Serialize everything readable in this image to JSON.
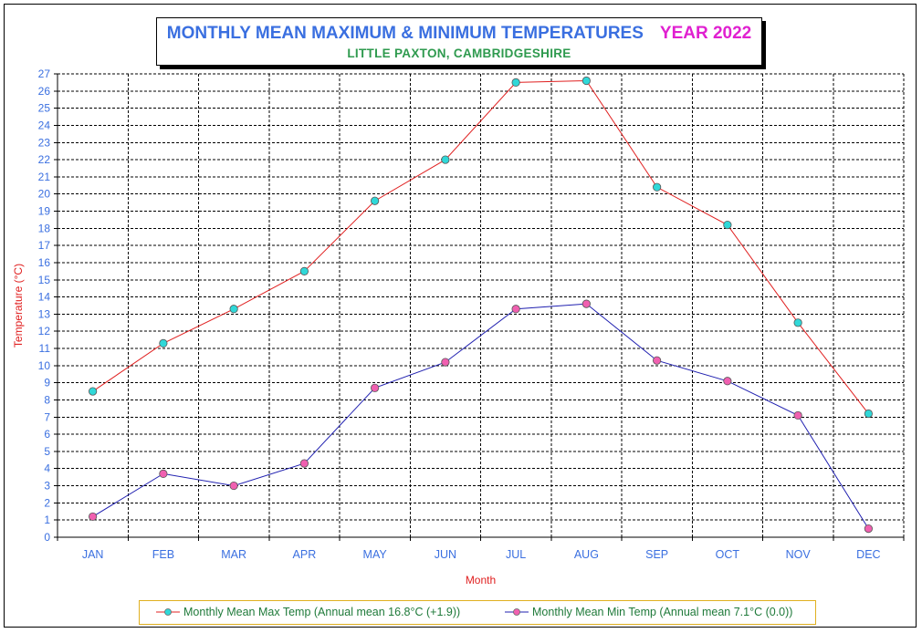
{
  "title": {
    "main": "MONTHLY  MEAN MAXIMUM & MINIMUM TEMPERATURES",
    "year": "YEAR 2022",
    "subtitle": "LITTLE PAXTON, CAMBRIDGESHIRE"
  },
  "colors": {
    "title": "#3a6fe0",
    "year": "#e020d0",
    "subtitle": "#2e9a4e",
    "max_line": "#e02020",
    "max_marker": "#30d8d8",
    "min_line": "#2020b0",
    "min_marker": "#f060b0",
    "axis_text": "#3a6fe0",
    "axis_title": "#e02020",
    "legend_text": "#1f7a3a"
  },
  "chart_data": {
    "type": "line",
    "categories": [
      "JAN",
      "FEB",
      "MAR",
      "APR",
      "MAY",
      "JUN",
      "JUL",
      "AUG",
      "SEP",
      "OCT",
      "NOV",
      "DEC"
    ],
    "series": [
      {
        "name": "Monthly Mean Max Temp (Annual mean 16.8°C (+1.9))",
        "values": [
          8.5,
          11.3,
          13.3,
          15.5,
          19.6,
          22.0,
          26.5,
          26.6,
          20.4,
          18.2,
          12.5,
          7.2
        ]
      },
      {
        "name": "Monthly Mean Min Temp (Annual mean 7.1°C (0.0))",
        "values": [
          1.2,
          3.7,
          3.0,
          4.3,
          8.7,
          10.2,
          13.3,
          13.6,
          10.3,
          9.1,
          7.1,
          0.5
        ]
      }
    ],
    "xlabel": "Month",
    "ylabel": "Temperature (°C)",
    "ylim": [
      0,
      27
    ],
    "yticks": [
      "0",
      "1",
      "2",
      "3",
      "4",
      "5",
      "6",
      "7",
      "8",
      "9",
      "10",
      "11",
      "12",
      "13",
      "14",
      "15",
      "16",
      "17",
      "18",
      "19",
      "20",
      "21",
      "22",
      "23",
      "24",
      "25",
      "26",
      "27"
    ],
    "grid": true,
    "legend_position": "bottom"
  }
}
